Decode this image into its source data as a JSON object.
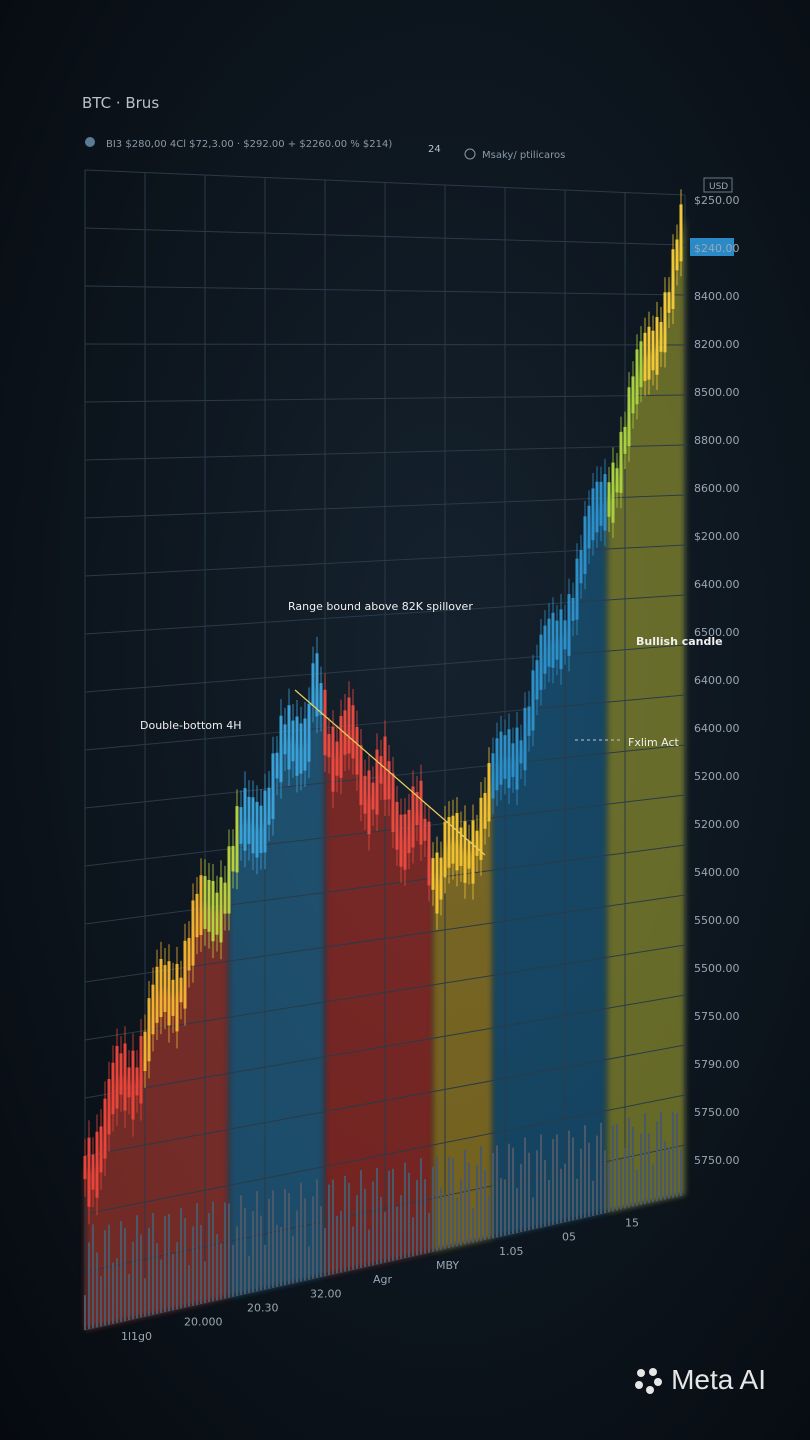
{
  "header": {
    "title": "BTC · Brus",
    "info": "BI3  $280,00 4Cl  $72,3.00 · $292.00 + $2260.00 % $214)",
    "interval": "24",
    "indicators": "Msaky/ ptilicaros",
    "currency": "USD"
  },
  "y_axis_labels": [
    "$250.00",
    "$240.00",
    "8400.00",
    "8200.00",
    "8500.00",
    "8800.00",
    "8600.00",
    "$200.00",
    "6400.00",
    "6500.00",
    "6400.00",
    "6400.00",
    "5200.00",
    "5200.00",
    "5400.00",
    "5500.00",
    "5500.00",
    "5750.00",
    "5790.00",
    "5750.00",
    "5750.00"
  ],
  "x_axis_labels": [
    "1l1g0",
    "20.000",
    "20.30",
    "32.00",
    "Agr",
    "MBY",
    "1.05",
    "05",
    "15"
  ],
  "annotations": [
    "Range bound above 82K spillover",
    "Double-bottom 4H",
    "Bullish candle",
    "Fxlim Act"
  ],
  "badge": "Meta AI"
}
